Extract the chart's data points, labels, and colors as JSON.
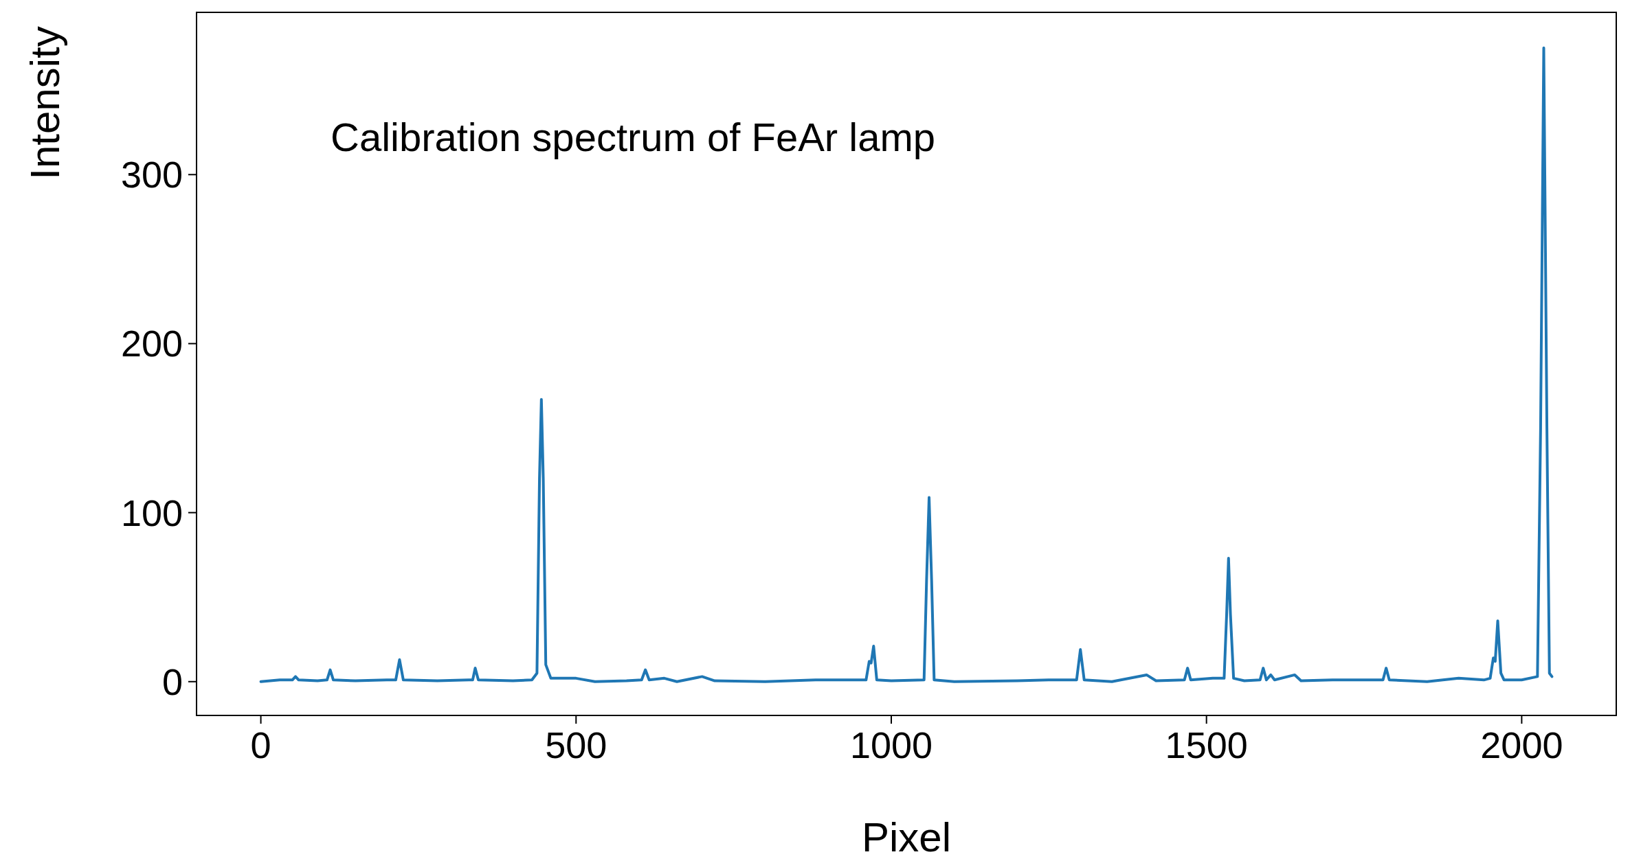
{
  "chart_data": {
    "type": "line",
    "xlabel": "Pixel",
    "ylabel": "Intensity",
    "annotations": [
      "Calibration spectrum of FeAr lamp"
    ],
    "xlim": [
      -102,
      2150
    ],
    "ylim": [
      -20,
      396
    ],
    "xticks": [
      0,
      500,
      1000,
      1500,
      2000
    ],
    "yticks": [
      0,
      100,
      200,
      300
    ],
    "series": [
      {
        "color": "#1f77b4",
        "x": [
          0,
          30,
          50,
          55,
          60,
          90,
          105,
          110,
          115,
          150,
          200,
          214,
          220,
          226,
          280,
          330,
          336,
          340,
          345,
          400,
          430,
          438,
          442,
          445,
          448,
          452,
          460,
          500,
          530,
          580,
          604,
          610,
          616,
          640,
          660,
          700,
          720,
          800,
          880,
          960,
          965,
          968,
          972,
          977,
          1000,
          1052,
          1056,
          1060,
          1064,
          1068,
          1100,
          1200,
          1250,
          1294,
          1300,
          1306,
          1350,
          1405,
          1420,
          1465,
          1470,
          1475,
          1510,
          1528,
          1532,
          1535,
          1538,
          1543,
          1560,
          1585,
          1590,
          1595,
          1602,
          1608,
          1640,
          1650,
          1700,
          1780,
          1785,
          1790,
          1850,
          1900,
          1940,
          1950,
          1955,
          1958,
          1962,
          1967,
          1972,
          2000,
          2025,
          2030,
          2035,
          2040,
          2044,
          2048
        ],
        "values": [
          0,
          1,
          1,
          3,
          1,
          0.5,
          1,
          7,
          1,
          0.5,
          1,
          1,
          13,
          1,
          0.5,
          1,
          1,
          8,
          1,
          0.5,
          1,
          5,
          120,
          167,
          120,
          10,
          2,
          2,
          0,
          0.5,
          1,
          7,
          1,
          2,
          0,
          3,
          0.5,
          0,
          1,
          1,
          12,
          11,
          21,
          1,
          0.5,
          1,
          60,
          109,
          60,
          1,
          0,
          0.5,
          1,
          1,
          19,
          1,
          0,
          4,
          0.5,
          1,
          8,
          1,
          2,
          2,
          40,
          73,
          40,
          2,
          0.5,
          1,
          8,
          1,
          4,
          1,
          4,
          0.5,
          1,
          1,
          8,
          1,
          0,
          2,
          1,
          2,
          14,
          12,
          36,
          5,
          1,
          1,
          3,
          150,
          375,
          150,
          5,
          3
        ]
      }
    ]
  }
}
